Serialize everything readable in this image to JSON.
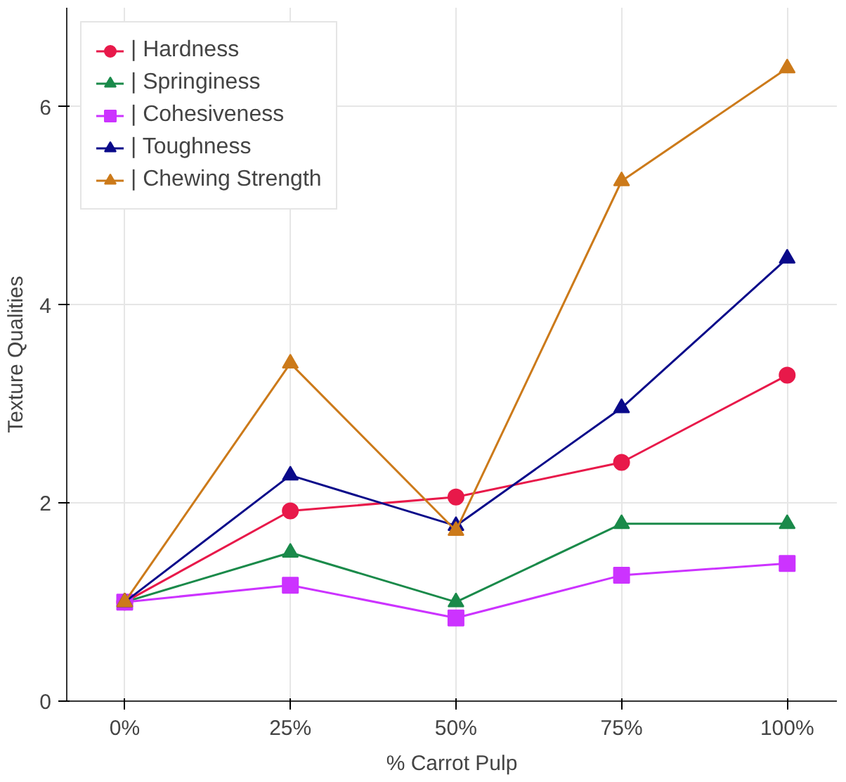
{
  "chart_data": {
    "type": "line",
    "xlabel": "% Carrot Pulp",
    "ylabel": "Texture Qualities",
    "categories": [
      "0%",
      "25%",
      "50%",
      "75%",
      "100%"
    ],
    "ylim": [
      0,
      7
    ],
    "yticks": [
      0,
      2,
      4,
      6
    ],
    "grid": true,
    "legend": "top left",
    "series": [
      {
        "name": "| Hardness",
        "color": "#e8194a",
        "marker": "circle",
        "values": [
          1,
          1.92,
          2.06,
          2.41,
          3.29
        ]
      },
      {
        "name": "| Springiness",
        "color": "#1a8a4a",
        "marker": "triangle",
        "values": [
          1,
          1.5,
          1.0,
          1.79,
          1.79
        ]
      },
      {
        "name": "| Cohesiveness",
        "color": "#cc33ff",
        "marker": "square",
        "values": [
          1,
          1.17,
          0.84,
          1.27,
          1.39
        ]
      },
      {
        "name": "| Toughness",
        "color": "#0a0a8a",
        "marker": "triangle",
        "values": [
          1,
          2.28,
          1.77,
          2.96,
          4.47
        ]
      },
      {
        "name": "| Chewing Strength",
        "color": "#cc7a1a",
        "marker": "triangle",
        "values": [
          1,
          3.41,
          1.72,
          5.25,
          6.39
        ]
      }
    ]
  }
}
